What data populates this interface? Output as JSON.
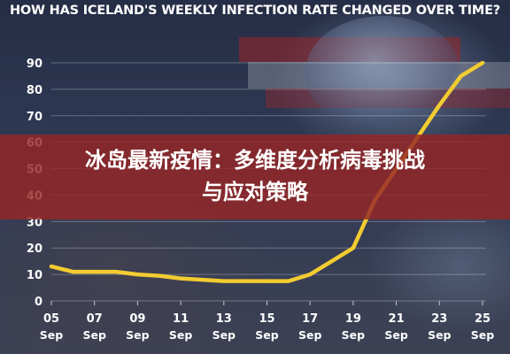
{
  "chart_data": {
    "type": "line",
    "title": "HOW HAS ICELAND'S WEEKLY INFECTION RATE CHANGED OVER TIME?",
    "xlabel": "",
    "ylabel": "",
    "ylim": [
      0,
      90
    ],
    "y_ticks": [
      "0",
      "10",
      "20",
      "30",
      "40",
      "50",
      "60",
      "70",
      "80",
      "90"
    ],
    "x_ticks": [
      {
        "day": "05",
        "month": "Sep"
      },
      {
        "day": "07",
        "month": "Sep"
      },
      {
        "day": "09",
        "month": "Sep"
      },
      {
        "day": "11",
        "month": "Sep"
      },
      {
        "day": "13",
        "month": "Sep"
      },
      {
        "day": "15",
        "month": "Sep"
      },
      {
        "day": "17",
        "month": "Sep"
      },
      {
        "day": "19",
        "month": "Sep"
      },
      {
        "day": "21",
        "month": "Sep"
      },
      {
        "day": "23",
        "month": "Sep"
      },
      {
        "day": "25",
        "month": "Sep"
      }
    ],
    "x": [
      "05 Sep",
      "06 Sep",
      "07 Sep",
      "08 Sep",
      "09 Sep",
      "10 Sep",
      "11 Sep",
      "12 Sep",
      "13 Sep",
      "14 Sep",
      "15 Sep",
      "16 Sep",
      "17 Sep",
      "18 Sep",
      "19 Sep",
      "20 Sep",
      "21 Sep",
      "22 Sep",
      "23 Sep",
      "24 Sep",
      "25 Sep"
    ],
    "values": [
      13,
      11,
      11,
      11,
      10,
      9.5,
      8.5,
      8,
      7.5,
      7.5,
      7.5,
      7.5,
      10,
      15,
      20,
      38,
      50,
      62,
      74,
      85,
      90
    ],
    "line_color": "#f2cc30",
    "grid": true,
    "legend": "none"
  },
  "caption": {
    "line1": "冰岛最新疫情：多维度分析病毒挑战",
    "line2": "与应对策略"
  },
  "colors": {
    "caption_band": "#96262680",
    "axis_text": "#ffffff"
  }
}
